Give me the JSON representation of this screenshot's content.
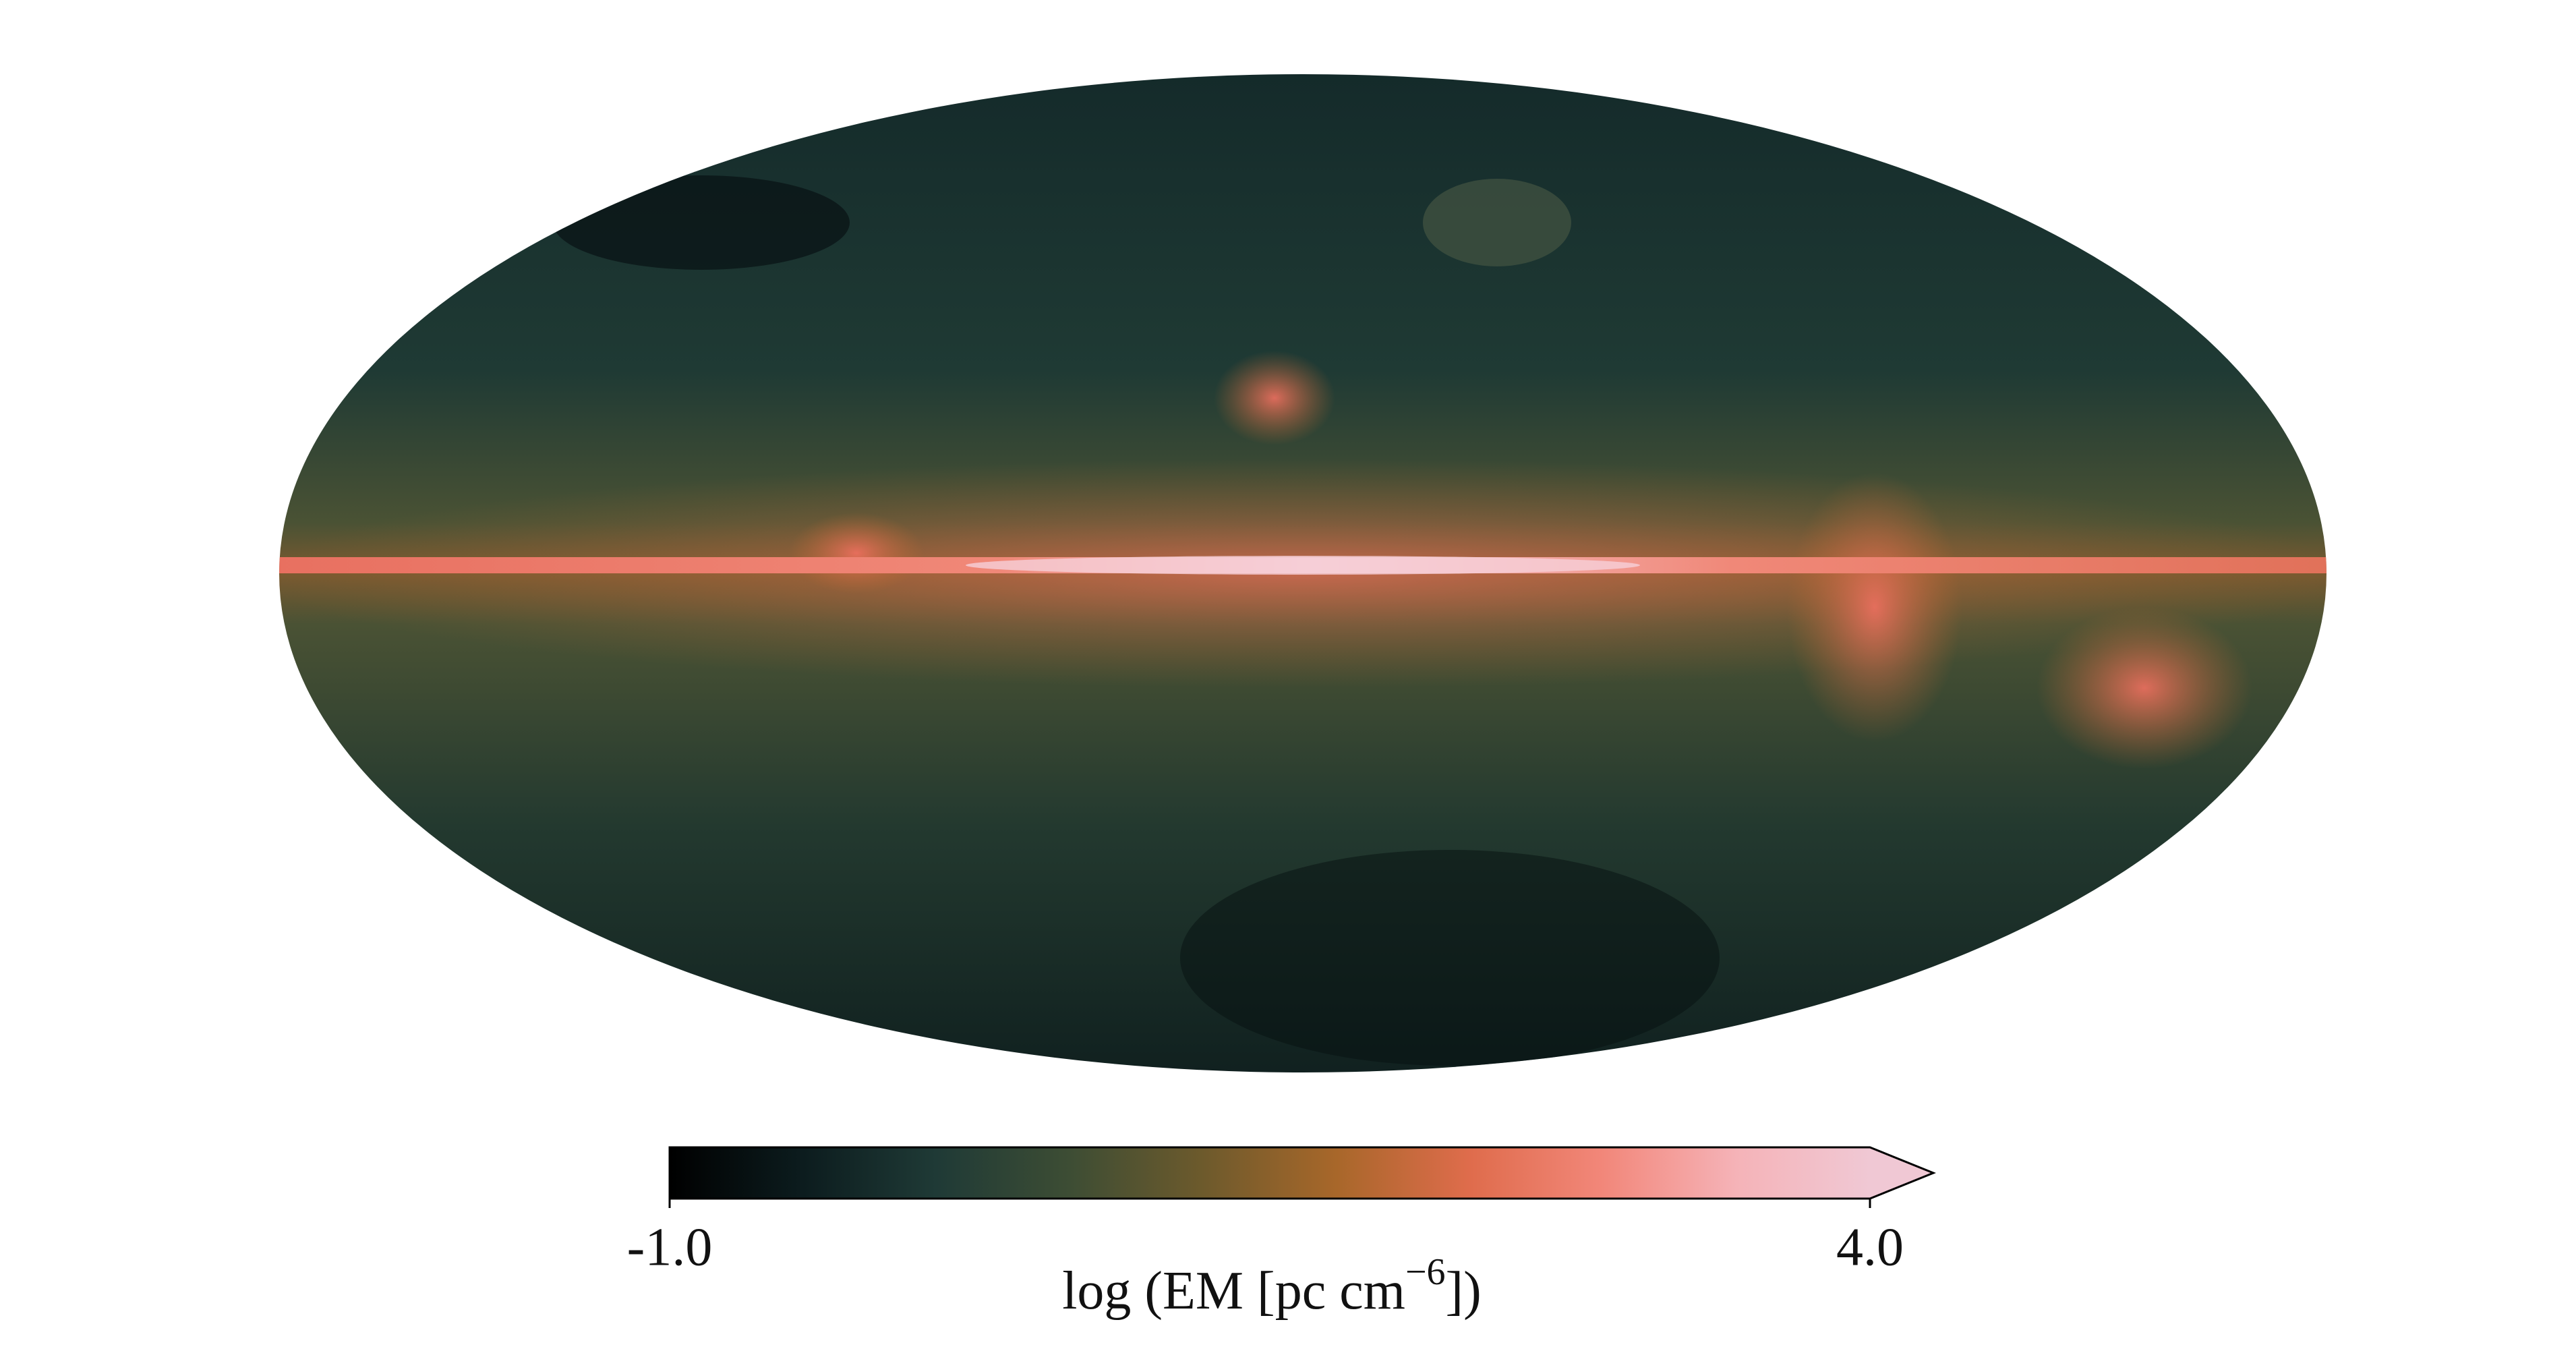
{
  "chart_data": {
    "type": "mollweide",
    "colorbar": {
      "clim": [
        -1,
        4
      ],
      "ticks": [
        {
          "value": -1,
          "label": "-1.0"
        },
        {
          "value": 4,
          "label": "4.0"
        }
      ],
      "label": [
        "log (EM [pc cm",
        "−6",
        "])"
      ],
      "extend": "max",
      "colormap": [
        "#000000",
        "#0c1c1e",
        "#1f3a36",
        "#3d4d34",
        "#6d5a2c",
        "#a8672a",
        "#df6c4c",
        "#f2877a",
        "#f5b3b8",
        "#f0c8d4"
      ]
    }
  }
}
